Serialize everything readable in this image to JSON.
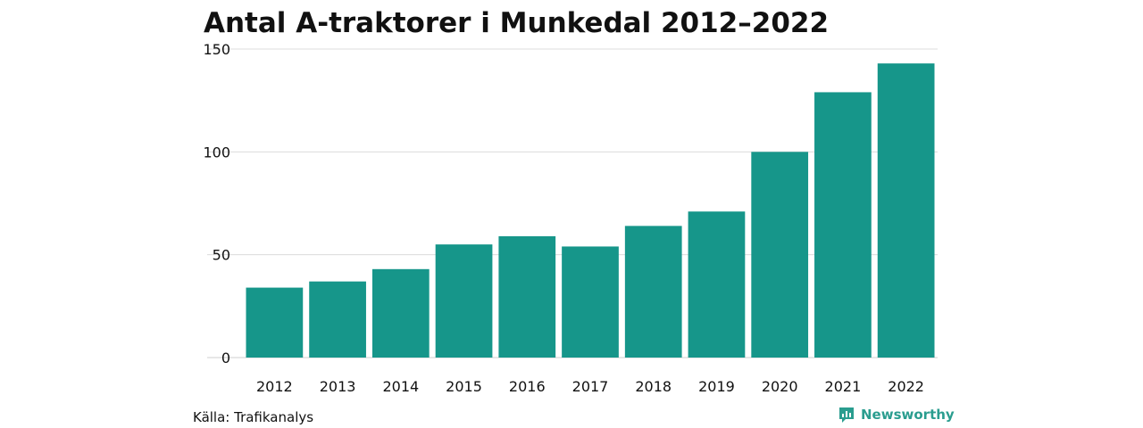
{
  "chart_data": {
    "type": "bar",
    "title": "Antal A-traktorer i Munkedal 2012–2022",
    "categories": [
      "2012",
      "2013",
      "2014",
      "2015",
      "2016",
      "2017",
      "2018",
      "2019",
      "2020",
      "2021",
      "2022"
    ],
    "values": [
      34,
      37,
      43,
      55,
      59,
      54,
      64,
      71,
      100,
      129,
      143
    ],
    "ylim": [
      0,
      150
    ],
    "yticks": [
      0,
      50,
      100,
      150
    ],
    "grid": true,
    "bar_color": "#16968a"
  },
  "footer": {
    "source": "Källa: Trafikanalys",
    "brand": "Newsworthy",
    "brand_icon": "newsworthy-logo-icon",
    "brand_color": "#2a9d8f"
  }
}
